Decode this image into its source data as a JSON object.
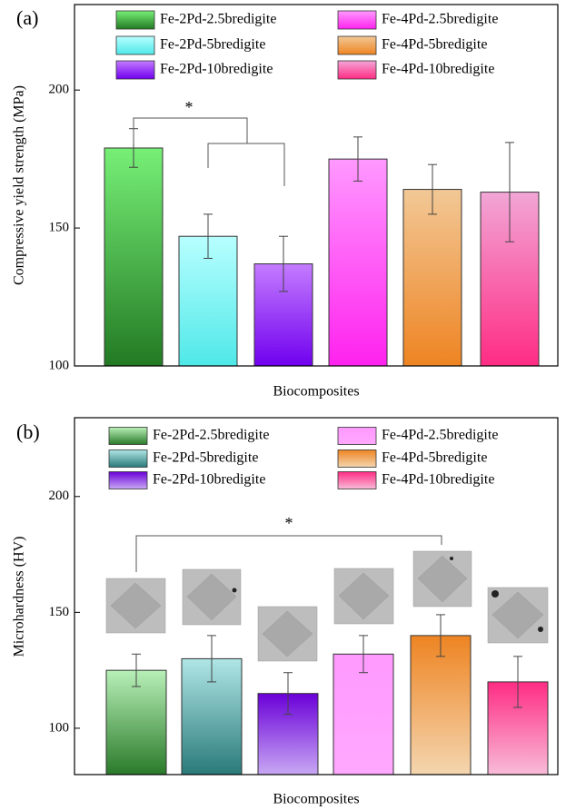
{
  "chart_data": [
    {
      "type": "bar",
      "label": "(a)",
      "ylabel": "Compressive yield strength  (MPa)",
      "xlabel": "Biocomposites",
      "ylim": [
        100,
        231
      ],
      "yticks": [
        100,
        150,
        200
      ],
      "series": [
        {
          "name": "Fe-2Pd-2.5bredigite",
          "colors": [
            "#77f077",
            "#237a23"
          ],
          "values": [
            179
          ],
          "errors": [
            7
          ]
        },
        {
          "name": "Fe-2Pd-5bredigite",
          "colors": [
            "#b8ffff",
            "#4fe8e8"
          ],
          "values": [
            147
          ],
          "errors": [
            8
          ]
        },
        {
          "name": "Fe-2Pd-10bredigite",
          "colors": [
            "#c47cff",
            "#7000ee"
          ],
          "values": [
            137
          ],
          "errors": [
            10
          ]
        },
        {
          "name": "Fe-4Pd-2.5bredigite",
          "colors": [
            "#ff99ff",
            "#ff22ee"
          ],
          "values": [
            175
          ],
          "errors": [
            8
          ]
        },
        {
          "name": "Fe-4Pd-5bredigite",
          "colors": [
            "#f2c896",
            "#ee8422"
          ],
          "values": [
            164
          ],
          "errors": [
            9
          ]
        },
        {
          "name": "Fe-4Pd-10bredigite",
          "colors": [
            "#f2a6d6",
            "#ff2c84"
          ],
          "values": [
            163
          ],
          "errors": [
            18
          ]
        }
      ],
      "annotations": [
        "*"
      ]
    },
    {
      "type": "bar",
      "label": "(b)",
      "ylabel": "Microhardness  (HV)",
      "xlabel": "Biocomposites",
      "ylim": [
        80,
        234
      ],
      "yticks": [
        100,
        150,
        200
      ],
      "series": [
        {
          "name": "Fe-2Pd-2.5bredigite",
          "colors": [
            "#b8f0b8",
            "#2a7a2a"
          ],
          "values": [
            125
          ],
          "errors": [
            7
          ]
        },
        {
          "name": "Fe-2Pd-5bredigite",
          "colors": [
            "#b0e6e6",
            "#2a7a7a"
          ],
          "values": [
            130
          ],
          "errors": [
            10
          ]
        },
        {
          "name": "Fe-2Pd-10bredigite",
          "colors": [
            "#6a00d8",
            "#c8a8f4"
          ],
          "values": [
            115
          ],
          "errors": [
            9
          ]
        },
        {
          "name": "Fe-4Pd-2.5bredigite",
          "colors": [
            "#ff99ff",
            "#ffa8ff"
          ],
          "values": [
            132
          ],
          "errors": [
            8
          ]
        },
        {
          "name": "Fe-4Pd-5bredigite",
          "colors": [
            "#ee8422",
            "#f4d6b0"
          ],
          "values": [
            140
          ],
          "errors": [
            9
          ]
        },
        {
          "name": "Fe-4Pd-10bredigite",
          "colors": [
            "#ff2c84",
            "#f8bcd8"
          ],
          "values": [
            120
          ],
          "errors": [
            11
          ]
        }
      ],
      "annotations": [
        "*"
      ]
    }
  ]
}
